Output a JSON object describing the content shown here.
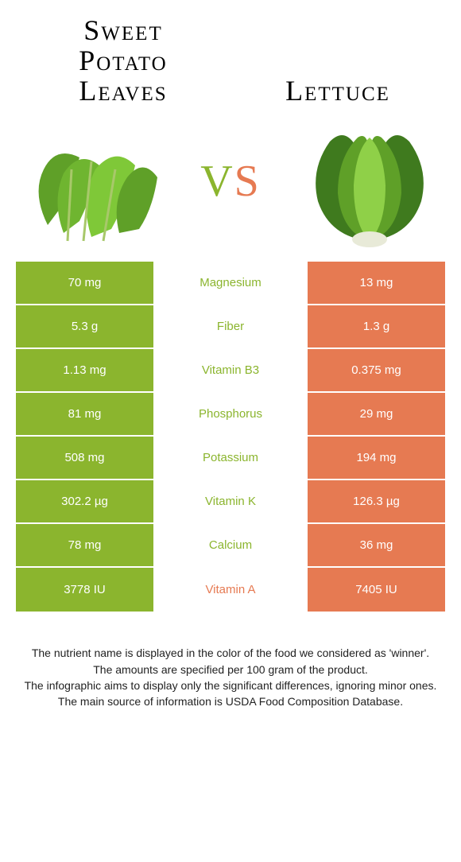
{
  "colors": {
    "left": "#8bb52e",
    "right": "#e67a52",
    "text": "#222222",
    "rowText": "#ffffff"
  },
  "header": {
    "leftTitle": "Sweet\nPotato\nLeaves",
    "rightTitle": "Lettuce",
    "vsV": "V",
    "vsS": "S",
    "title_fontsize": 36,
    "leftLines": [
      "Sweet",
      "Potato",
      "Leaves"
    ]
  },
  "table": {
    "rows": [
      {
        "left": "70 mg",
        "label": "Magnesium",
        "right": "13 mg",
        "winner": "left"
      },
      {
        "left": "5.3 g",
        "label": "Fiber",
        "right": "1.3 g",
        "winner": "left"
      },
      {
        "left": "1.13 mg",
        "label": "Vitamin B3",
        "right": "0.375 mg",
        "winner": "left"
      },
      {
        "left": "81 mg",
        "label": "Phosphorus",
        "right": "29 mg",
        "winner": "left"
      },
      {
        "left": "508 mg",
        "label": "Potassium",
        "right": "194 mg",
        "winner": "left"
      },
      {
        "left": "302.2 µg",
        "label": "Vitamin K",
        "right": "126.3 µg",
        "winner": "left"
      },
      {
        "left": "78 mg",
        "label": "Calcium",
        "right": "36 mg",
        "winner": "left"
      },
      {
        "left": "3778 IU",
        "label": "Vitamin A",
        "right": "7405 IU",
        "winner": "right"
      }
    ]
  },
  "footer": {
    "line1": "The nutrient name is displayed in the color of the food we considered as 'winner'.",
    "line2": "The amounts are specified per 100 gram of the product.",
    "line3": "The infographic aims to display only the significant differences, ignoring minor ones.",
    "line4": "The main source of information is USDA Food Composition Database."
  }
}
